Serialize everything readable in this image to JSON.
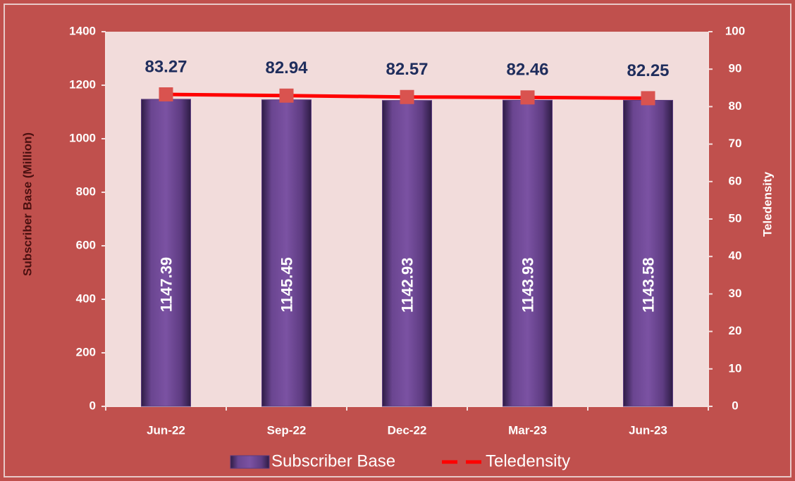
{
  "chart_data": {
    "type": "bar",
    "categories": [
      "Jun-22",
      "Sep-22",
      "Dec-22",
      "Mar-23",
      "Jun-23"
    ],
    "series": [
      {
        "name": "Subscriber Base",
        "type": "bar",
        "color": "#5b3b7e",
        "values": [
          1147.39,
          1145.45,
          1142.93,
          1143.93,
          1143.58
        ]
      },
      {
        "name": "Teledensity",
        "type": "line",
        "axis": "y2",
        "color": "#ff0000",
        "marker_color": "#d9534f",
        "values": [
          83.27,
          82.94,
          82.57,
          82.46,
          82.25
        ]
      }
    ],
    "ylabel": "Subscriber Base (Million)",
    "y2label": "Teledensity",
    "ylim": [
      0,
      1400
    ],
    "yticks": [
      0,
      200,
      400,
      600,
      800,
      1000,
      1200,
      1400
    ],
    "y2lim": [
      0,
      100
    ],
    "y2ticks": [
      0,
      10,
      20,
      30,
      40,
      50,
      60,
      70,
      80,
      90,
      100
    ],
    "legend": "bottom"
  }
}
